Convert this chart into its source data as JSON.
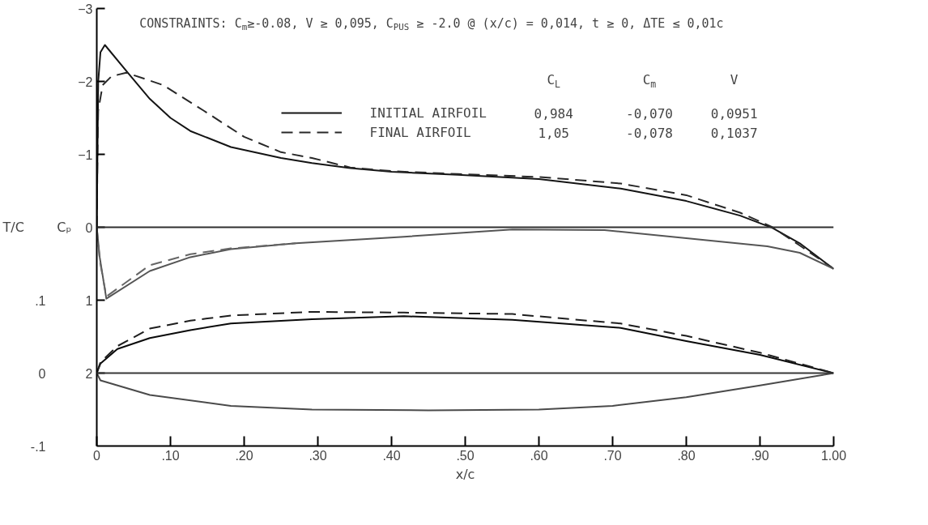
{
  "chart_data": {
    "type": "line",
    "title": "CONSTRAINTS: C$_{m}$≥-0.08, V ≥ 0,095, C$_{PUS}$ ≥ -2.0 @ (x/c) = 0,014, t ≥ 0, ΔTE ≤ 0,01c",
    "xlabel": "x/c",
    "ylabel": "Cₚ",
    "y2label": "T/C",
    "annotations": [
      "C$_{L}$",
      "C$_{m}$",
      "V",
      "0,984",
      "-0,070",
      "0,0951",
      "1,05",
      "-0,078",
      "0,1037"
    ],
    "xlim": [
      0,
      1
    ],
    "xticks": [
      0,
      {
        "value": 0.1,
        "label": ".10"
      },
      {
        "value": 0.2,
        "label": ".20"
      },
      {
        "value": 0.3,
        "label": ".30"
      },
      {
        "value": 0.4,
        "label": ".40"
      },
      {
        "value": 0.5,
        "label": ".50"
      },
      {
        "value": 0.6,
        "label": ".60"
      },
      {
        "value": 0.7,
        "label": ".70"
      },
      {
        "value": 0.8,
        "label": ".80"
      },
      {
        "value": 0.9,
        "label": ".90"
      },
      {
        "value": 1,
        "label": "1.00"
      }
    ],
    "ylim": [
      3,
      -3
    ],
    "yticks": [
      -3,
      -2,
      -1,
      0,
      1,
      2
    ],
    "y2lim": [
      -0.1,
      0.5
    ],
    "y2ticks": [
      {
        "value": -0.1,
        "label": "-.1"
      },
      0,
      {
        "value": 0.1,
        "label": ".1"
      }
    ],
    "legend": "top",
    "ref_lines": [
      {
        "axis": "y",
        "value": 0,
        "color": "#303030"
      },
      {
        "axis": "y2",
        "value": 0,
        "color": "#383838"
      }
    ],
    "series": [
      {
        "name": "INITIAL AIRFOIL",
        "color": "#141414",
        "line_style": "solid",
        "x": [
          0,
          0.001,
          0.002,
          0.005,
          0.011,
          0.042,
          0.072,
          0.1,
          0.127,
          0.182,
          0.25,
          0.292,
          0.344,
          0.4,
          0.49,
          0.6,
          0.711,
          0.8,
          0.873,
          0.917,
          0.954,
          1.0
        ],
        "values": [
          0,
          -1.0,
          -2.0,
          -2.4,
          -2.5,
          -2.12,
          -1.76,
          -1.5,
          -1.32,
          -1.1,
          -0.95,
          -0.88,
          -0.81,
          -0.76,
          -0.72,
          -0.66,
          -0.53,
          -0.36,
          -0.16,
          0.01,
          0.22,
          0.57
        ]
      },
      {
        "name": "FINAL AIRFOIL",
        "color": "#282828",
        "line_style": "dashed",
        "x": [
          0,
          0.001,
          0.002,
          0.008,
          0.02,
          0.04,
          0.09,
          0.145,
          0.2,
          0.25,
          0.292,
          0.344,
          0.4,
          0.49,
          0.6,
          0.711,
          0.8,
          0.873,
          0.917,
          0.954,
          1.0
        ],
        "values": [
          0,
          -1.0,
          -1.6,
          -1.95,
          -2.07,
          -2.12,
          -1.95,
          -1.6,
          -1.24,
          -1.03,
          -0.95,
          -0.82,
          -0.77,
          -0.73,
          -0.69,
          -0.6,
          -0.44,
          -0.2,
          0.0,
          0.25,
          0.57
        ]
      },
      {
        "color": "#555555",
        "line_style": "solid",
        "x": [
          0,
          0.004,
          0.013,
          0.072,
          0.127,
          0.182,
          0.27,
          0.417,
          0.564,
          0.689,
          0.8,
          0.91,
          0.954,
          1.0
        ],
        "values": [
          0,
          0.41,
          0.98,
          0.6,
          0.41,
          0.3,
          0.22,
          0.13,
          0.03,
          0.04,
          0.15,
          0.26,
          0.35,
          0.57
        ]
      },
      {
        "color": "#666666",
        "line_style": "dashed",
        "x": [
          0,
          0.004,
          0.013,
          0.072,
          0.127,
          0.182,
          0.27
        ],
        "values": [
          0,
          0.45,
          0.95,
          0.52,
          0.37,
          0.29,
          0.22
        ]
      },
      {
        "color": "#0a0a0a",
        "line_style": "solid",
        "axis": "y2",
        "x": [
          0,
          0.005,
          0.028,
          0.072,
          0.127,
          0.182,
          0.292,
          0.417,
          0.564,
          0.711,
          0.8,
          0.9,
          1
        ],
        "values": [
          0,
          0.013,
          0.033,
          0.048,
          0.059,
          0.068,
          0.074,
          0.078,
          0.073,
          0.062,
          0.044,
          0.025,
          0
        ]
      },
      {
        "color": "#4a4a4a",
        "line_style": "solid",
        "axis": "y2",
        "x": [
          0,
          0.005,
          0.072,
          0.182,
          0.292,
          0.45,
          0.6,
          0.7,
          0.8,
          0.9,
          1
        ],
        "values": [
          0,
          -0.01,
          -0.03,
          -0.045,
          -0.05,
          -0.051,
          -0.05,
          -0.045,
          -0.033,
          -0.017,
          0
        ]
      },
      {
        "color": "#1e1e1e",
        "line_style": "dashed",
        "axis": "y2",
        "x": [
          0,
          0.005,
          0.028,
          0.072,
          0.127,
          0.182,
          0.292,
          0.417,
          0.564,
          0.711,
          0.8,
          0.9,
          1
        ],
        "values": [
          0,
          0.015,
          0.037,
          0.061,
          0.072,
          0.079,
          0.084,
          0.083,
          0.081,
          0.068,
          0.051,
          0.028,
          0
        ]
      }
    ]
  }
}
